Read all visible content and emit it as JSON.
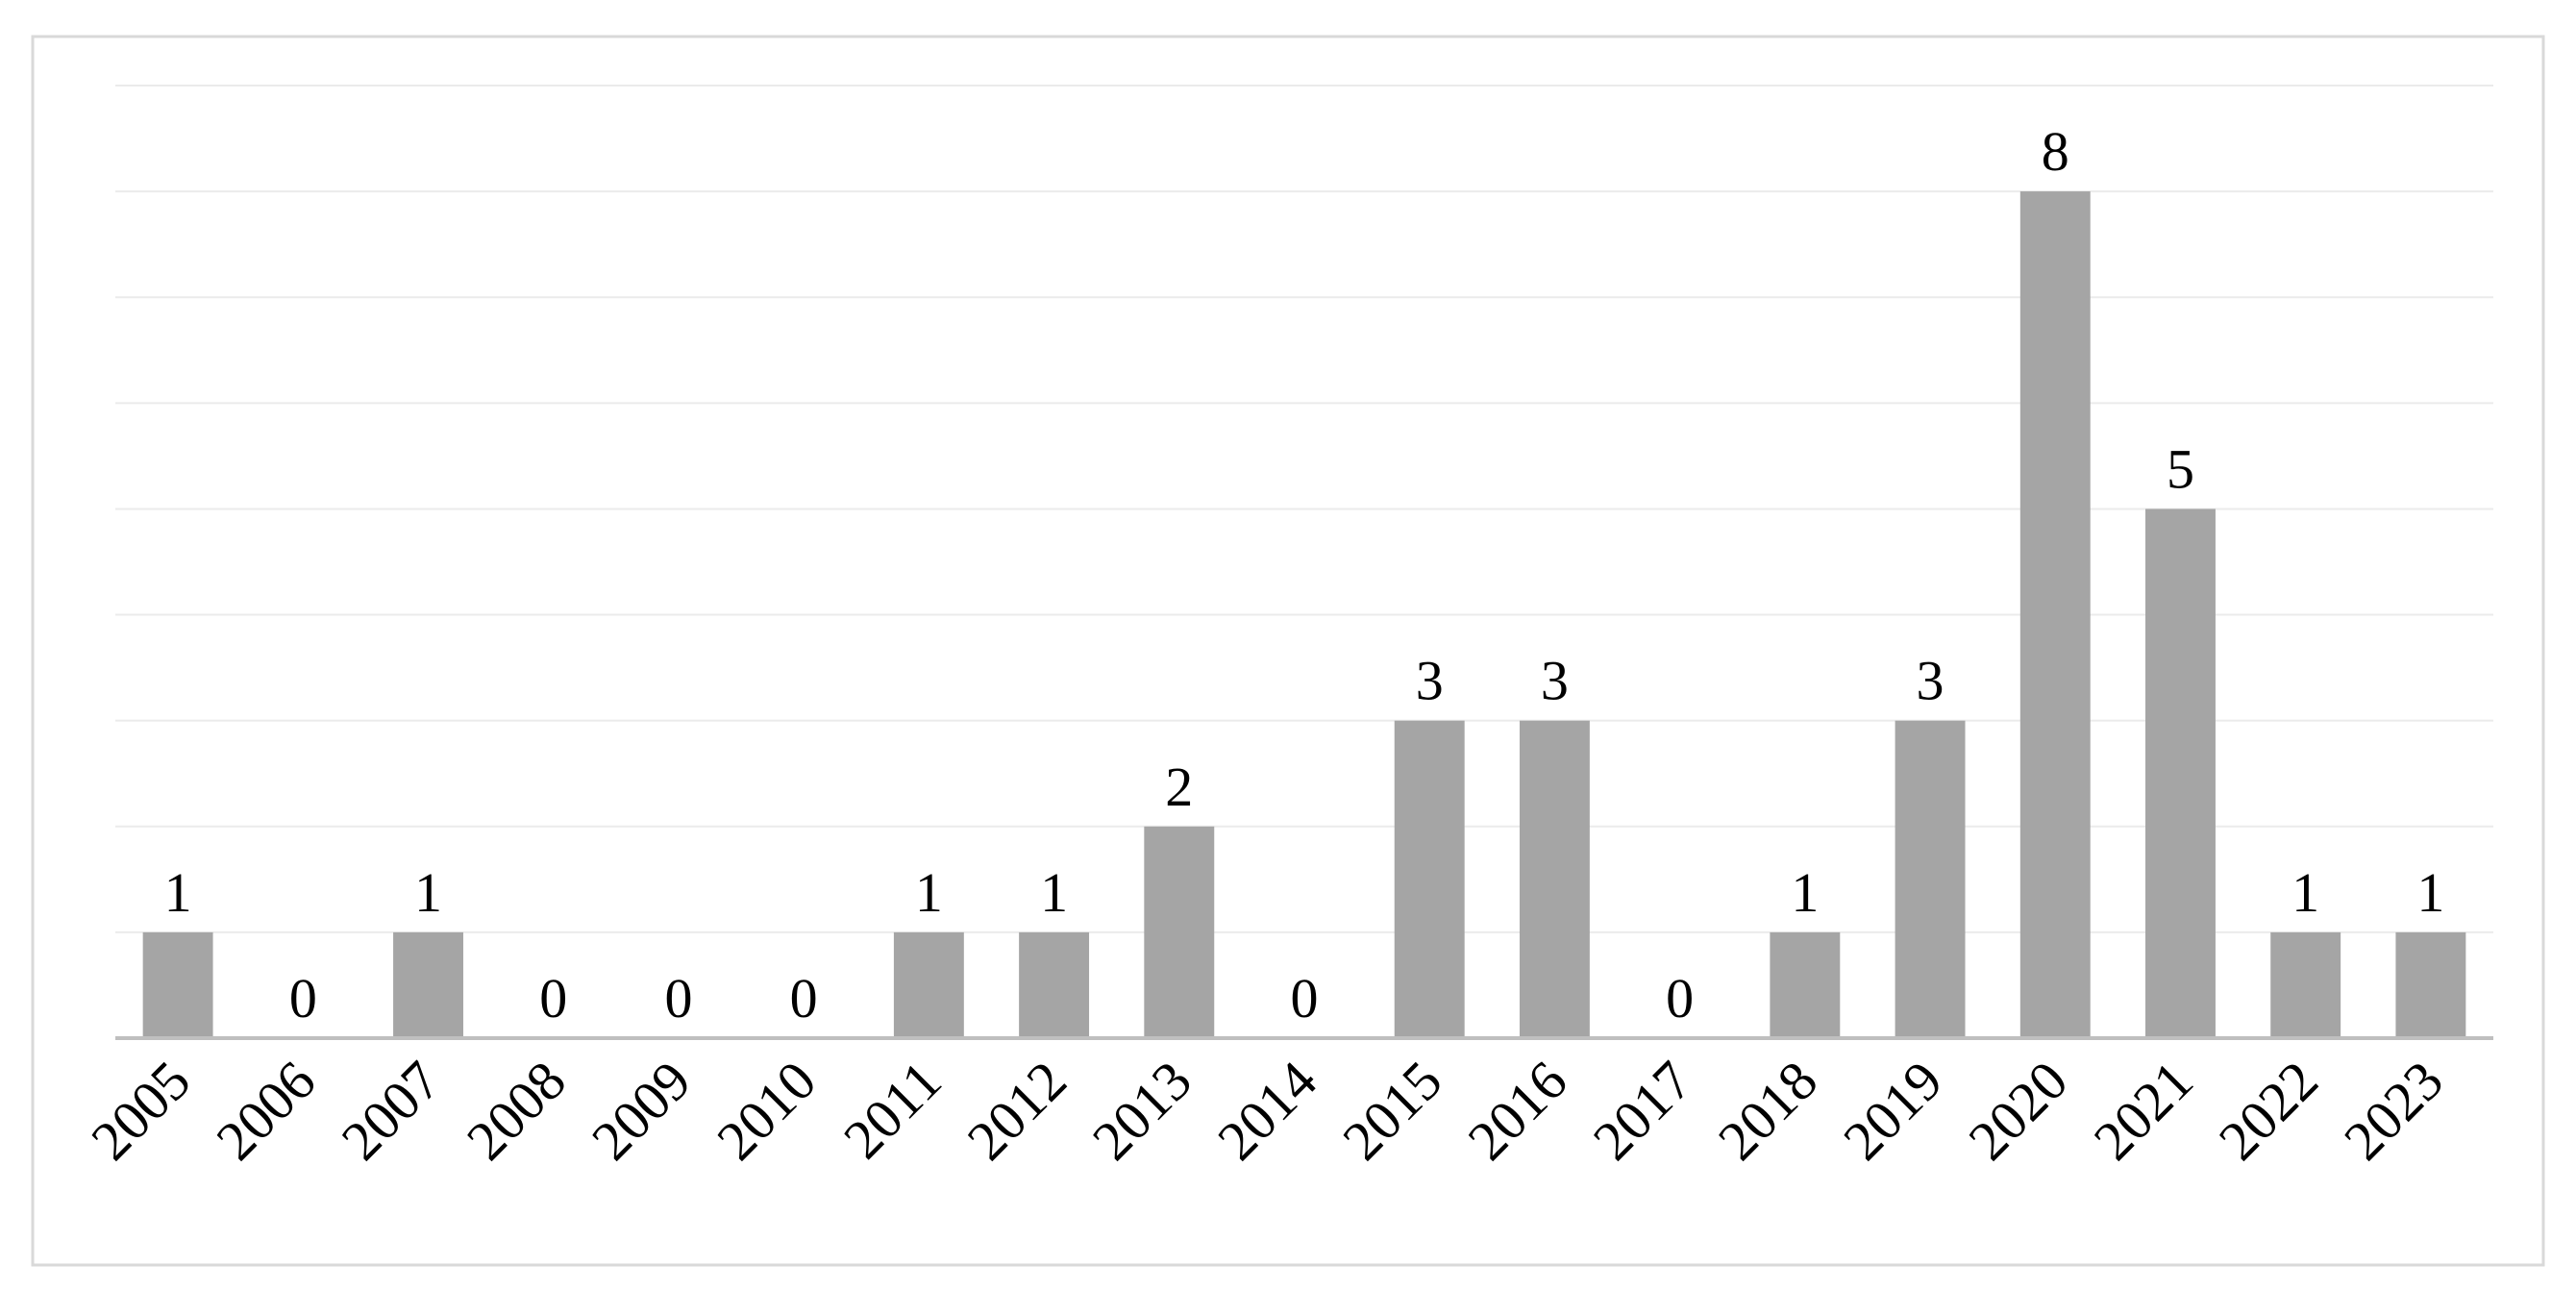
{
  "chart_data": {
    "type": "bar",
    "categories": [
      "2005",
      "2006",
      "2007",
      "2008",
      "2009",
      "2010",
      "2011",
      "2012",
      "2013",
      "2014",
      "2015",
      "2016",
      "2017",
      "2018",
      "2019",
      "2020",
      "2021",
      "2022",
      "2023"
    ],
    "values": [
      1,
      0,
      1,
      0,
      0,
      0,
      1,
      1,
      2,
      0,
      3,
      3,
      0,
      1,
      3,
      8,
      5,
      1,
      1
    ],
    "color": "#a5a5a5",
    "ylim": [
      0,
      9
    ],
    "yticks": [
      0,
      1,
      2,
      3,
      4,
      5,
      6,
      7,
      8,
      9
    ],
    "grid": true
  }
}
